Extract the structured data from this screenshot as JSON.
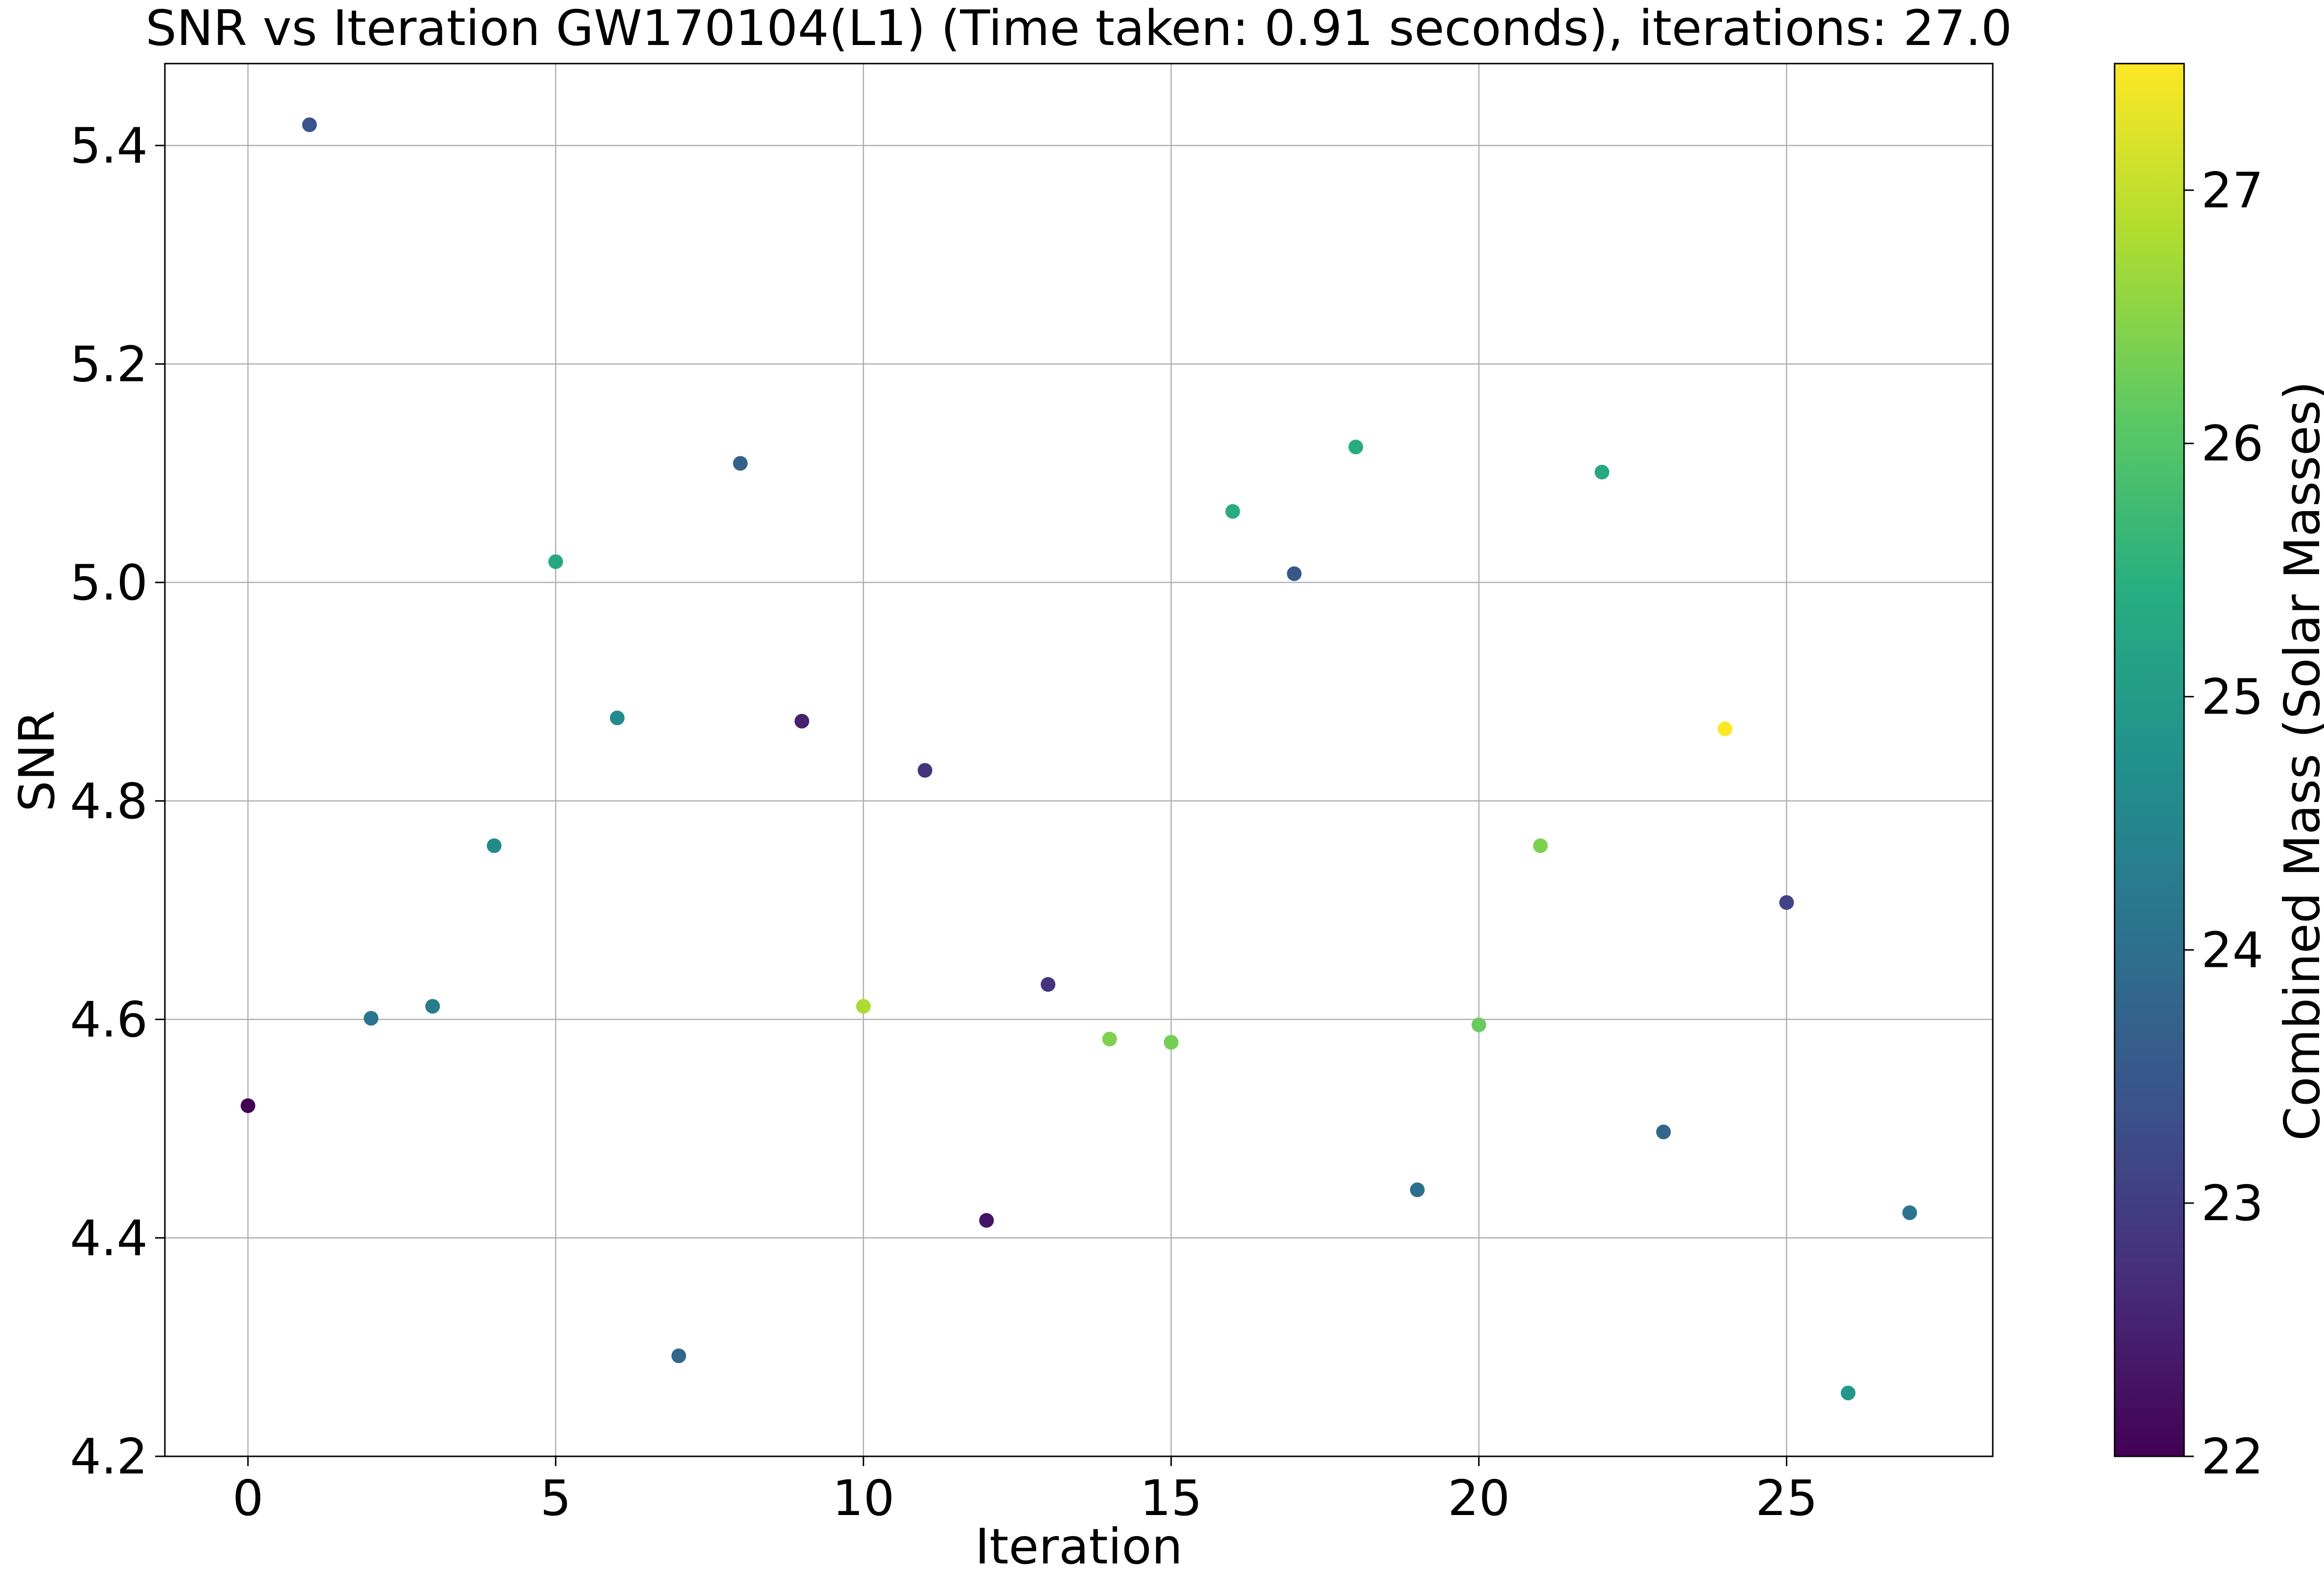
{
  "chart_data": {
    "type": "scatter",
    "title": "SNR vs Iteration GW170104(L1) (Time taken: 0.91 seconds), iterations: 27.0",
    "xlabel": "Iteration",
    "ylabel": "SNR",
    "xlim": [
      -1.35,
      28.35
    ],
    "ylim": [
      4.2,
      5.475
    ],
    "xticks": [
      0,
      5,
      10,
      15,
      20,
      25
    ],
    "yticks": [
      4.2,
      4.4,
      4.6,
      4.8,
      5.0,
      5.2,
      5.4
    ],
    "ytick_labels": [
      "4.2",
      "4.4",
      "4.6",
      "4.8",
      "5.0",
      "5.2",
      "5.4"
    ],
    "grid": true,
    "colormap": "viridis",
    "colorbar": {
      "label": "Combined Mass (Solar Masses)",
      "range": [
        22,
        27.5
      ],
      "ticks": [
        22,
        23,
        24,
        25,
        26,
        27
      ]
    },
    "x": [
      0,
      1,
      2,
      3,
      4,
      5,
      6,
      7,
      8,
      9,
      10,
      11,
      12,
      13,
      14,
      15,
      16,
      17,
      18,
      19,
      20,
      21,
      22,
      23,
      24,
      25,
      26,
      27
    ],
    "y": [
      4.521,
      5.419,
      4.601,
      4.612,
      4.759,
      5.019,
      4.876,
      4.292,
      5.109,
      4.873,
      4.612,
      4.828,
      4.416,
      4.632,
      4.582,
      4.579,
      5.065,
      5.008,
      5.124,
      4.444,
      4.595,
      4.759,
      5.101,
      4.497,
      4.866,
      4.707,
      4.258,
      4.423
    ],
    "color_values": [
      22.0,
      23.4,
      24.1,
      24.3,
      24.6,
      25.3,
      24.6,
      23.8,
      23.7,
      22.5,
      26.8,
      22.8,
      22.3,
      22.8,
      26.4,
      26.3,
      25.4,
      23.5,
      25.4,
      24.0,
      26.2,
      26.4,
      25.3,
      23.8,
      27.5,
      23.1,
      24.9,
      24.1
    ]
  }
}
